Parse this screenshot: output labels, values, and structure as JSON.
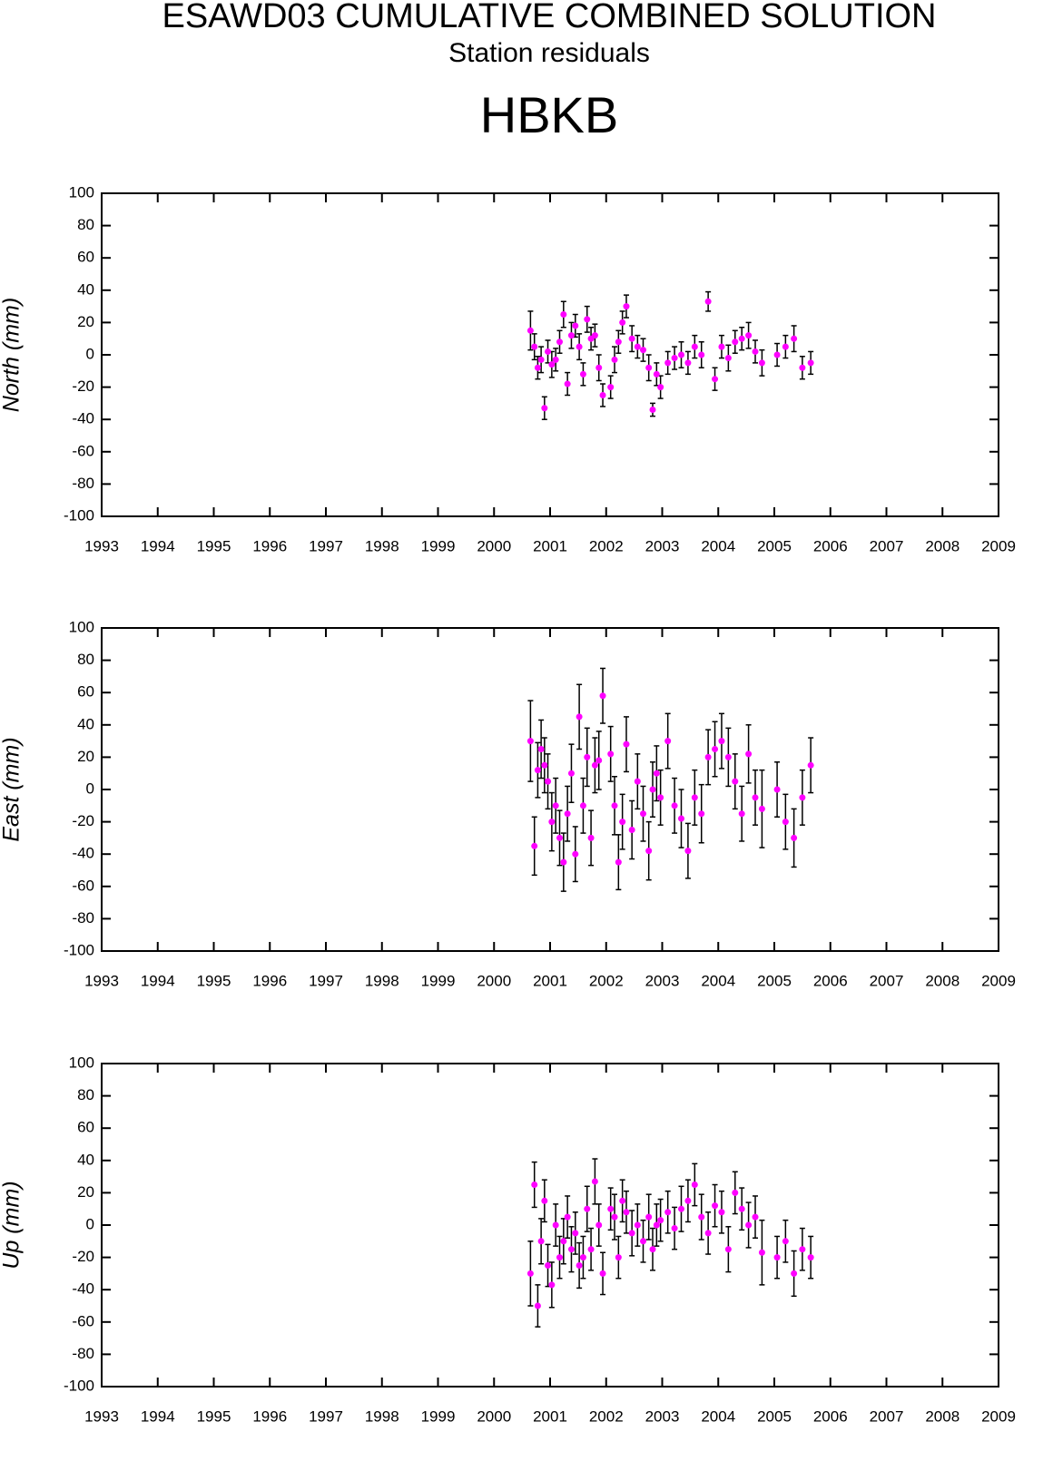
{
  "header": {
    "title": "ESAWD03 CUMULATIVE COMBINED SOLUTION",
    "subtitle": "Station residuals",
    "station": "HBKB"
  },
  "chart_data": [
    {
      "type": "scatter",
      "ylabel": "North (mm)",
      "x": [
        2000.65,
        2000.72,
        2000.78,
        2000.84,
        2000.9,
        2000.96,
        2001.03,
        2001.1,
        2001.17,
        2001.24,
        2001.31,
        2001.38,
        2001.45,
        2001.52,
        2001.59,
        2001.66,
        2001.73,
        2001.8,
        2001.87,
        2001.94,
        2002.08,
        2002.15,
        2002.22,
        2002.29,
        2002.36,
        2002.46,
        2002.56,
        2002.66,
        2002.76,
        2002.83,
        2002.9,
        2002.97,
        2003.1,
        2003.22,
        2003.34,
        2003.46,
        2003.58,
        2003.7,
        2003.82,
        2003.94,
        2004.06,
        2004.18,
        2004.3,
        2004.42,
        2004.54,
        2004.66,
        2004.78,
        2005.05,
        2005.2,
        2005.35,
        2005.5,
        2005.65
      ],
      "series": [
        {
          "color": "#ff00ff",
          "values": [
            15,
            5,
            -8,
            -3,
            -33,
            2,
            -6,
            -3,
            8,
            25,
            -18,
            12,
            18,
            5,
            -12,
            22,
            10,
            12,
            -8,
            -25,
            -20,
            -3,
            8,
            20,
            30,
            10,
            5,
            3,
            -8,
            -34,
            -12,
            -20,
            -5,
            -2,
            0,
            -5,
            5,
            0,
            33,
            -15,
            5,
            -2,
            8,
            10,
            12,
            2,
            -5,
            0,
            5,
            10,
            -8,
            -5
          ],
          "errors": [
            12,
            8,
            7,
            8,
            7,
            7,
            8,
            7,
            7,
            8,
            7,
            8,
            7,
            8,
            7,
            8,
            7,
            7,
            8,
            7,
            7,
            8,
            7,
            7,
            7,
            8,
            7,
            7,
            8,
            4,
            7,
            7,
            7,
            7,
            8,
            7,
            7,
            8,
            6,
            7,
            7,
            8,
            7,
            7,
            8,
            7,
            8,
            7,
            7,
            8,
            7,
            7
          ]
        }
      ],
      "xlim": [
        1993,
        2009
      ],
      "xticks": [
        1993,
        1994,
        1995,
        1996,
        1997,
        1998,
        1999,
        2000,
        2001,
        2002,
        2003,
        2004,
        2005,
        2006,
        2007,
        2008,
        2009
      ],
      "ylim": [
        -100,
        100
      ],
      "yticks": [
        -100,
        -80,
        -60,
        -40,
        -20,
        0,
        20,
        40,
        60,
        80,
        100
      ]
    },
    {
      "type": "scatter",
      "ylabel": "East (mm)",
      "x": [
        2000.65,
        2000.72,
        2000.78,
        2000.84,
        2000.9,
        2000.96,
        2001.03,
        2001.1,
        2001.17,
        2001.24,
        2001.31,
        2001.38,
        2001.45,
        2001.52,
        2001.59,
        2001.66,
        2001.73,
        2001.8,
        2001.87,
        2001.94,
        2002.08,
        2002.15,
        2002.22,
        2002.29,
        2002.36,
        2002.46,
        2002.56,
        2002.66,
        2002.76,
        2002.83,
        2002.9,
        2002.97,
        2003.1,
        2003.22,
        2003.34,
        2003.46,
        2003.58,
        2003.7,
        2003.82,
        2003.94,
        2004.06,
        2004.18,
        2004.3,
        2004.42,
        2004.54,
        2004.66,
        2004.78,
        2005.05,
        2005.2,
        2005.35,
        2005.5,
        2005.65
      ],
      "series": [
        {
          "color": "#ff00ff",
          "values": [
            30,
            -35,
            12,
            25,
            15,
            5,
            -20,
            -10,
            -30,
            -45,
            -15,
            10,
            -40,
            45,
            -10,
            20,
            -30,
            15,
            18,
            58,
            22,
            -10,
            -45,
            -20,
            28,
            -25,
            5,
            -15,
            -38,
            0,
            10,
            -5,
            30,
            -10,
            -18,
            -38,
            -5,
            -15,
            20,
            25,
            30,
            20,
            5,
            -15,
            22,
            -5,
            -12,
            0,
            -20,
            -30,
            -5,
            15
          ],
          "errors": [
            25,
            18,
            17,
            18,
            17,
            17,
            18,
            17,
            17,
            18,
            17,
            18,
            17,
            20,
            17,
            18,
            17,
            17,
            18,
            17,
            17,
            18,
            17,
            17,
            17,
            18,
            17,
            17,
            18,
            17,
            17,
            17,
            17,
            17,
            18,
            17,
            17,
            18,
            17,
            17,
            17,
            18,
            17,
            17,
            18,
            17,
            24,
            17,
            17,
            18,
            17,
            17
          ]
        }
      ],
      "xlim": [
        1993,
        2009
      ],
      "xticks": [
        1993,
        1994,
        1995,
        1996,
        1997,
        1998,
        1999,
        2000,
        2001,
        2002,
        2003,
        2004,
        2005,
        2006,
        2007,
        2008,
        2009
      ],
      "ylim": [
        -100,
        100
      ],
      "yticks": [
        -100,
        -80,
        -60,
        -40,
        -20,
        0,
        20,
        40,
        60,
        80,
        100
      ]
    },
    {
      "type": "scatter",
      "ylabel": "Up (mm)",
      "x": [
        2000.65,
        2000.72,
        2000.78,
        2000.84,
        2000.9,
        2000.96,
        2001.03,
        2001.1,
        2001.17,
        2001.24,
        2001.31,
        2001.38,
        2001.45,
        2001.52,
        2001.59,
        2001.66,
        2001.73,
        2001.8,
        2001.87,
        2001.94,
        2002.08,
        2002.15,
        2002.22,
        2002.29,
        2002.36,
        2002.46,
        2002.56,
        2002.66,
        2002.76,
        2002.83,
        2002.9,
        2002.97,
        2003.1,
        2003.22,
        2003.34,
        2003.46,
        2003.58,
        2003.7,
        2003.82,
        2003.94,
        2004.06,
        2004.18,
        2004.3,
        2004.42,
        2004.54,
        2004.66,
        2004.78,
        2005.05,
        2005.2,
        2005.35,
        2005.5,
        2005.65
      ],
      "series": [
        {
          "color": "#ff00ff",
          "values": [
            -30,
            25,
            -50,
            -10,
            15,
            -25,
            -37,
            0,
            -20,
            -10,
            5,
            -15,
            -5,
            -25,
            -20,
            10,
            -15,
            27,
            0,
            -30,
            10,
            5,
            -20,
            15,
            8,
            -5,
            0,
            -10,
            5,
            -15,
            0,
            3,
            8,
            -2,
            10,
            15,
            25,
            5,
            -5,
            12,
            8,
            -15,
            20,
            10,
            0,
            5,
            -17,
            -20,
            -10,
            -30,
            -15,
            -20
          ],
          "errors": [
            20,
            14,
            13,
            14,
            13,
            13,
            14,
            13,
            13,
            14,
            13,
            14,
            13,
            14,
            13,
            14,
            13,
            14,
            13,
            13,
            13,
            14,
            13,
            13,
            13,
            14,
            13,
            13,
            14,
            13,
            13,
            13,
            13,
            13,
            14,
            13,
            13,
            14,
            13,
            13,
            13,
            14,
            13,
            13,
            14,
            13,
            20,
            13,
            13,
            14,
            13,
            13
          ]
        }
      ],
      "xlim": [
        1993,
        2009
      ],
      "xticks": [
        1993,
        1994,
        1995,
        1996,
        1997,
        1998,
        1999,
        2000,
        2001,
        2002,
        2003,
        2004,
        2005,
        2006,
        2007,
        2008,
        2009
      ],
      "ylim": [
        -100,
        100
      ],
      "yticks": [
        -100,
        -80,
        -60,
        -40,
        -20,
        0,
        20,
        40,
        60,
        80,
        100
      ]
    }
  ]
}
